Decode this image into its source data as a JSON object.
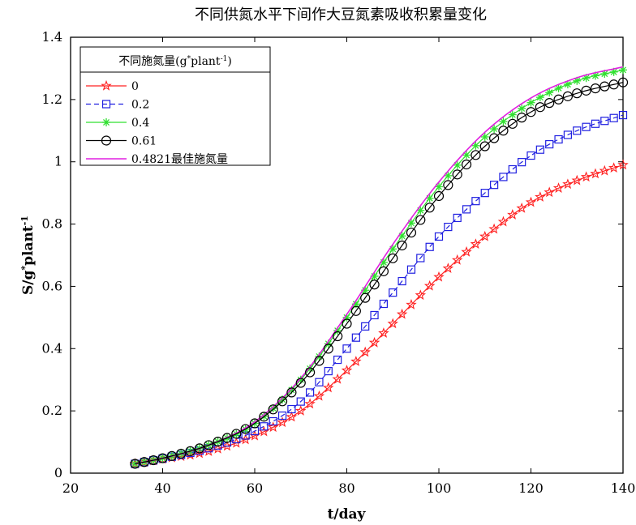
{
  "chart_data": {
    "type": "line",
    "title": "不同供氮水平下间作大豆氮素吸收积累量变化",
    "xlabel": "t/day",
    "ylabel": "S/g*plant-1",
    "xlim": [
      20,
      140
    ],
    "ylim": [
      0,
      1.4
    ],
    "xticks": [
      20,
      40,
      60,
      80,
      100,
      120,
      140
    ],
    "yticks": [
      0,
      0.2,
      0.4,
      0.6,
      0.8,
      1,
      1.2,
      1.4
    ],
    "ytick_labels": [
      "0",
      "0.2",
      "0.4",
      "0.6",
      "0.8",
      "1",
      "1.2",
      "1.4"
    ],
    "grid": false,
    "legend": {
      "title": "不同施氮量(g*plant-1)",
      "placement": "top-left"
    },
    "x": [
      34,
      40,
      50,
      60,
      70,
      80,
      90,
      100,
      110,
      120,
      130,
      140
    ],
    "series": [
      {
        "name": "0",
        "color": "#ff2020",
        "marker": "star",
        "line": "solid",
        "values": [
          0.03,
          0.045,
          0.07,
          0.12,
          0.2,
          0.33,
          0.48,
          0.63,
          0.76,
          0.87,
          0.94,
          0.99
        ]
      },
      {
        "name": "0.2",
        "color": "#2020e0",
        "marker": "square",
        "line": "dashed",
        "values": [
          0.03,
          0.047,
          0.08,
          0.135,
          0.23,
          0.4,
          0.58,
          0.76,
          0.9,
          1.02,
          1.1,
          1.15
        ]
      },
      {
        "name": "0.4",
        "color": "#30e030",
        "marker": "asterisk",
        "line": "solid",
        "values": [
          0.03,
          0.048,
          0.09,
          0.16,
          0.3,
          0.5,
          0.72,
          0.92,
          1.08,
          1.19,
          1.26,
          1.295
        ]
      },
      {
        "name": "0.61",
        "color": "#000000",
        "marker": "circle",
        "line": "solid",
        "values": [
          0.03,
          0.048,
          0.09,
          0.16,
          0.29,
          0.48,
          0.69,
          0.89,
          1.05,
          1.16,
          1.22,
          1.255
        ]
      },
      {
        "name": "0.4821最佳施氮量",
        "color": "#e020e0",
        "marker": "none",
        "line": "solid",
        "values": [
          0.03,
          0.048,
          0.09,
          0.165,
          0.305,
          0.51,
          0.735,
          0.935,
          1.095,
          1.205,
          1.27,
          1.305
        ]
      }
    ]
  }
}
